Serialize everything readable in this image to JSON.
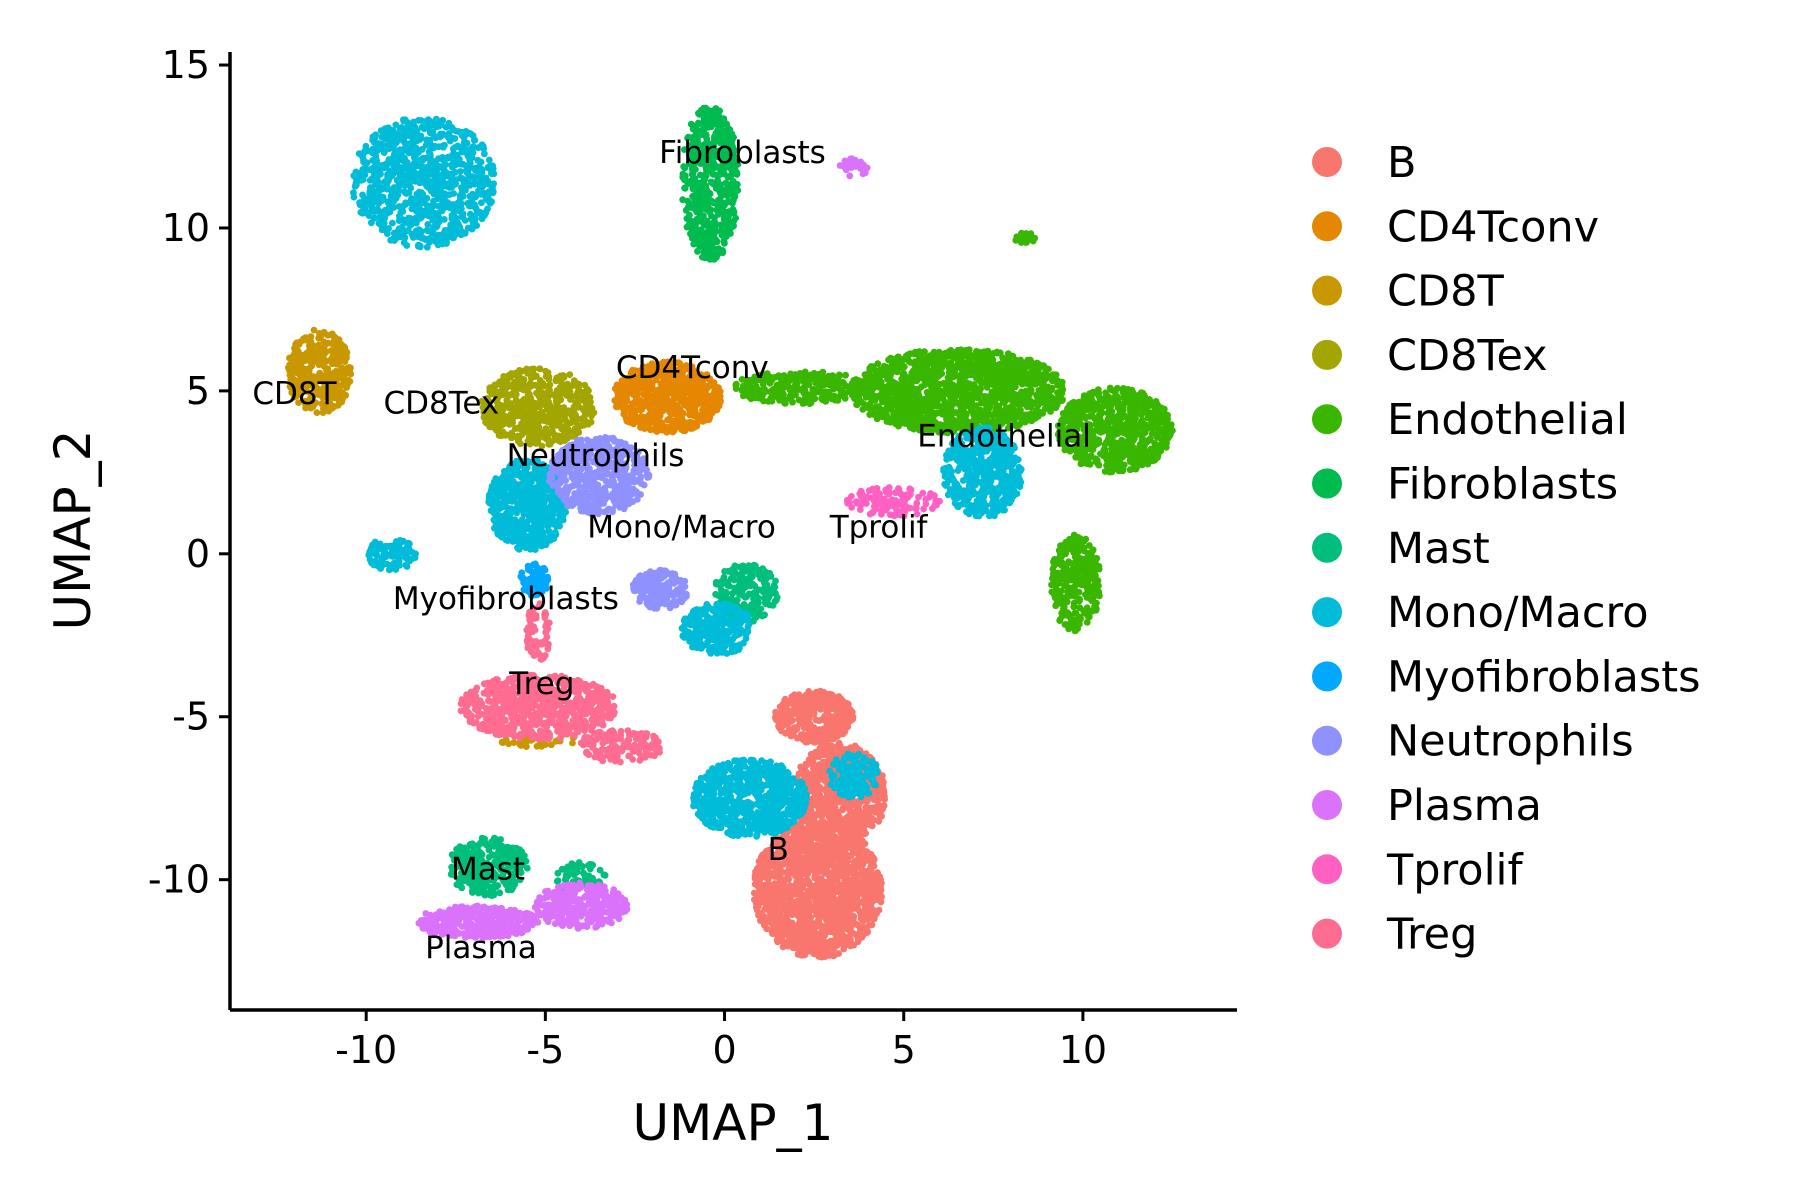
{
  "chart_data": {
    "type": "scatter",
    "title": "",
    "xlabel": "UMAP_1",
    "ylabel": "UMAP_2",
    "xlim": [
      -13.8,
      14.3
    ],
    "ylim": [
      -14,
      15.4
    ],
    "xticks": [
      -10,
      -5,
      0,
      5,
      10
    ],
    "yticks": [
      -10,
      -5,
      0,
      5,
      10,
      15
    ],
    "xtick_labels": [
      "-10",
      "-5",
      "0",
      "5",
      "10"
    ],
    "ytick_labels": [
      "-10",
      "-5",
      "0",
      "5",
      "10",
      "15"
    ],
    "grid": false,
    "legend_position": "right",
    "series": [
      {
        "name": "B",
        "color": "#F8766D",
        "regions": [
          {
            "cx": 2.6,
            "cy": -10.3,
            "rx": 1.8,
            "ry": 2.1,
            "n": 1500
          },
          {
            "cx": 3.2,
            "cy": -7.4,
            "rx": 1.3,
            "ry": 1.6,
            "n": 700
          },
          {
            "cx": 2.5,
            "cy": -5.0,
            "rx": 1.1,
            "ry": 0.8,
            "n": 400
          }
        ]
      },
      {
        "name": "CD4Tconv",
        "color": "#E58700",
        "regions": [
          {
            "cx": -1.6,
            "cy": 4.8,
            "rx": 1.5,
            "ry": 1.1,
            "n": 650
          }
        ]
      },
      {
        "name": "CD8T",
        "color": "#C99800",
        "regions": [
          {
            "cx": -11.3,
            "cy": 5.6,
            "rx": 0.9,
            "ry": 1.3,
            "n": 350
          },
          {
            "cx": -5.2,
            "cy": -5.7,
            "rx": 1.1,
            "ry": 0.25,
            "n": 40
          }
        ]
      },
      {
        "name": "CD8Tex",
        "color": "#A3A500",
        "regions": [
          {
            "cx": -5.2,
            "cy": 4.5,
            "rx": 1.6,
            "ry": 1.2,
            "n": 550
          }
        ]
      },
      {
        "name": "Endothelial",
        "color": "#39B600",
        "regions": [
          {
            "cx": 6.5,
            "cy": 5.0,
            "rx": 3.0,
            "ry": 1.3,
            "n": 1300
          },
          {
            "cx": 10.9,
            "cy": 3.8,
            "rx": 1.6,
            "ry": 1.3,
            "n": 700
          },
          {
            "cx": 9.8,
            "cy": -0.9,
            "rx": 0.7,
            "ry": 1.5,
            "n": 300
          },
          {
            "cx": 2.2,
            "cy": 5.1,
            "rx": 2.0,
            "ry": 0.5,
            "n": 250
          },
          {
            "cx": 8.4,
            "cy": 9.7,
            "rx": 0.3,
            "ry": 0.2,
            "n": 25
          }
        ]
      },
      {
        "name": "Fibroblasts",
        "color": "#00BB4E",
        "regions": [
          {
            "cx": -0.4,
            "cy": 11.4,
            "rx": 0.8,
            "ry": 2.4,
            "n": 550
          }
        ]
      },
      {
        "name": "Mast",
        "color": "#00BF7D",
        "regions": [
          {
            "cx": -6.6,
            "cy": -9.6,
            "rx": 1.1,
            "ry": 0.9,
            "n": 300
          },
          {
            "cx": 0.6,
            "cy": -1.2,
            "rx": 0.9,
            "ry": 0.9,
            "n": 200
          },
          {
            "cx": -4.0,
            "cy": -9.9,
            "rx": 0.7,
            "ry": 0.5,
            "n": 60
          }
        ]
      },
      {
        "name": "Mono/Macro",
        "color": "#00BCD8",
        "regions": [
          {
            "cx": -8.4,
            "cy": 11.4,
            "rx": 2.0,
            "ry": 2.0,
            "n": 900
          },
          {
            "cx": -5.5,
            "cy": 1.5,
            "rx": 1.1,
            "ry": 1.4,
            "n": 600
          },
          {
            "cx": 0.7,
            "cy": -7.5,
            "rx": 1.6,
            "ry": 1.2,
            "n": 700
          },
          {
            "cx": -0.2,
            "cy": -2.3,
            "rx": 1.0,
            "ry": 0.8,
            "n": 250
          },
          {
            "cx": 7.2,
            "cy": 2.5,
            "rx": 1.1,
            "ry": 1.4,
            "n": 500
          },
          {
            "cx": -9.3,
            "cy": 0.0,
            "rx": 0.7,
            "ry": 0.5,
            "n": 100
          },
          {
            "cx": 3.6,
            "cy": -6.8,
            "rx": 0.7,
            "ry": 0.7,
            "n": 150
          }
        ]
      },
      {
        "name": "Myofibroblasts",
        "color": "#00A9FF",
        "regions": [
          {
            "cx": -5.3,
            "cy": -0.8,
            "rx": 0.4,
            "ry": 0.5,
            "n": 80
          }
        ]
      },
      {
        "name": "Neutrophils",
        "color": "#8F91FF",
        "regions": [
          {
            "cx": -3.5,
            "cy": 2.4,
            "rx": 1.4,
            "ry": 1.2,
            "n": 500
          },
          {
            "cx": -1.8,
            "cy": -1.1,
            "rx": 0.8,
            "ry": 0.6,
            "n": 180
          }
        ]
      },
      {
        "name": "Plasma",
        "color": "#DB72FB",
        "regions": [
          {
            "cx": -6.9,
            "cy": -11.3,
            "rx": 1.7,
            "ry": 0.5,
            "n": 350
          },
          {
            "cx": -4.0,
            "cy": -10.8,
            "rx": 1.3,
            "ry": 0.7,
            "n": 300
          },
          {
            "cx": 3.6,
            "cy": 11.8,
            "rx": 0.4,
            "ry": 0.35,
            "n": 25
          }
        ]
      },
      {
        "name": "Tprolif",
        "color": "#FF61C3",
        "regions": [
          {
            "cx": 4.7,
            "cy": 1.6,
            "rx": 1.3,
            "ry": 0.45,
            "n": 120
          }
        ]
      },
      {
        "name": "Treg",
        "color": "#FF6C91",
        "regions": [
          {
            "cx": -5.2,
            "cy": -4.7,
            "rx": 2.2,
            "ry": 1.0,
            "n": 700
          },
          {
            "cx": -2.9,
            "cy": -5.9,
            "rx": 1.2,
            "ry": 0.5,
            "n": 150
          },
          {
            "cx": -5.2,
            "cy": -2.4,
            "rx": 0.35,
            "ry": 0.9,
            "n": 60
          }
        ]
      }
    ],
    "annotations": [
      {
        "text": "Fibroblasts",
        "x": 0.5,
        "y": 12.0
      },
      {
        "text": "CD4Tconv",
        "x": -0.9,
        "y": 5.4
      },
      {
        "text": "CD8T",
        "x": -12.0,
        "y": 4.6
      },
      {
        "text": "CD8Tex",
        "x": -7.9,
        "y": 4.3
      },
      {
        "text": "Neutrophils",
        "x": -3.6,
        "y": 2.7
      },
      {
        "text": "Endothelial",
        "x": 7.8,
        "y": 3.3
      },
      {
        "text": "Mono/Macro",
        "x": -1.2,
        "y": 0.5
      },
      {
        "text": "Tprolif",
        "x": 4.3,
        "y": 0.5
      },
      {
        "text": "Myofibroblasts",
        "x": -6.1,
        "y": -1.7
      },
      {
        "text": "Treg",
        "x": -5.1,
        "y": -4.3
      },
      {
        "text": "B",
        "x": 1.5,
        "y": -9.4
      },
      {
        "text": "Mast",
        "x": -6.6,
        "y": -10.0
      },
      {
        "text": "Plasma",
        "x": -6.8,
        "y": -12.4
      }
    ]
  }
}
